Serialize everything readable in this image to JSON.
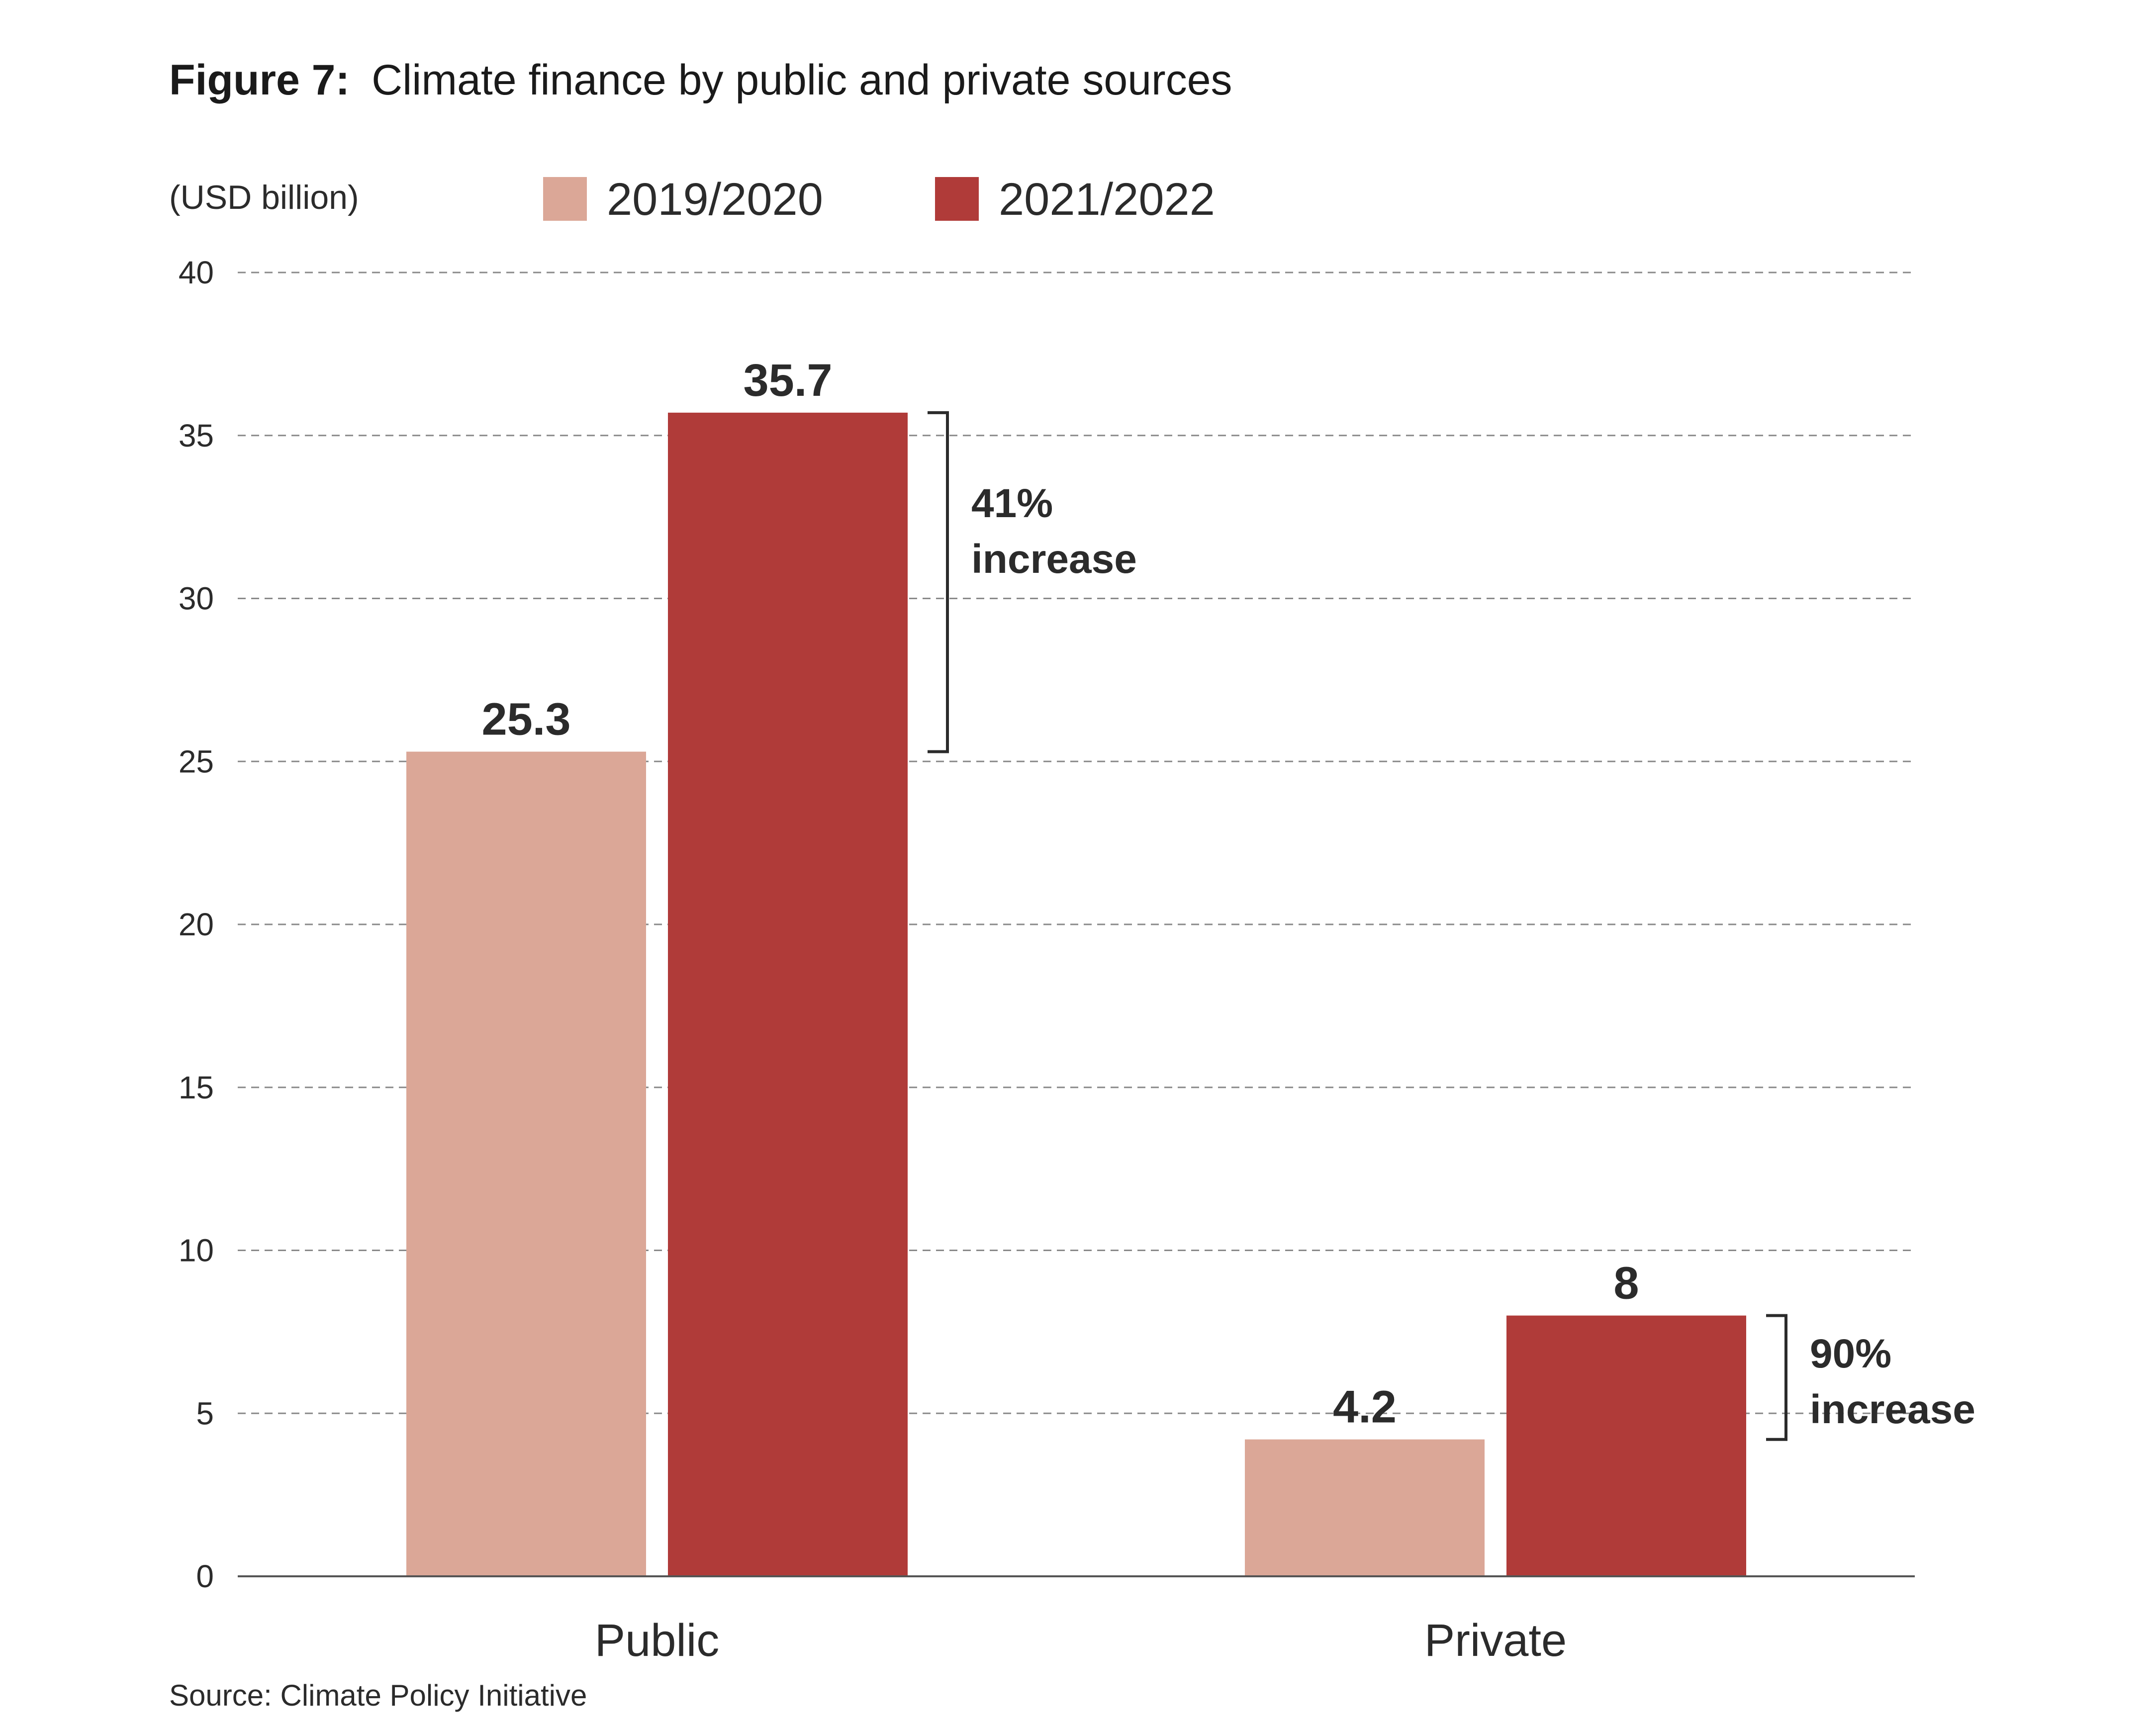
{
  "chart_data": {
    "type": "bar",
    "title_prefix": "Figure 7:",
    "title": "Climate finance by public and private sources",
    "unit_label": "(USD billion)",
    "categories": [
      "Public",
      "Private"
    ],
    "series": [
      {
        "name": "2019/2020",
        "color": "#dba797",
        "values": [
          25.3,
          4.2
        ],
        "labels": [
          "25.3",
          "4.2"
        ]
      },
      {
        "name": "2021/2022",
        "color": "#b03b39",
        "values": [
          35.7,
          8
        ],
        "labels": [
          "35.7",
          "8"
        ]
      }
    ],
    "ylim": [
      0,
      40
    ],
    "yticks": [
      "0",
      "5",
      "10",
      "15",
      "20",
      "25",
      "30",
      "35",
      "40"
    ],
    "grid": "dashed horizontal",
    "legend_position": "top",
    "annotations": [
      {
        "category": "Public",
        "line1": "41%",
        "line2": "increase"
      },
      {
        "category": "Private",
        "line1": "90%",
        "line2": "increase"
      }
    ],
    "source": "Source: Climate Policy Initiative"
  }
}
